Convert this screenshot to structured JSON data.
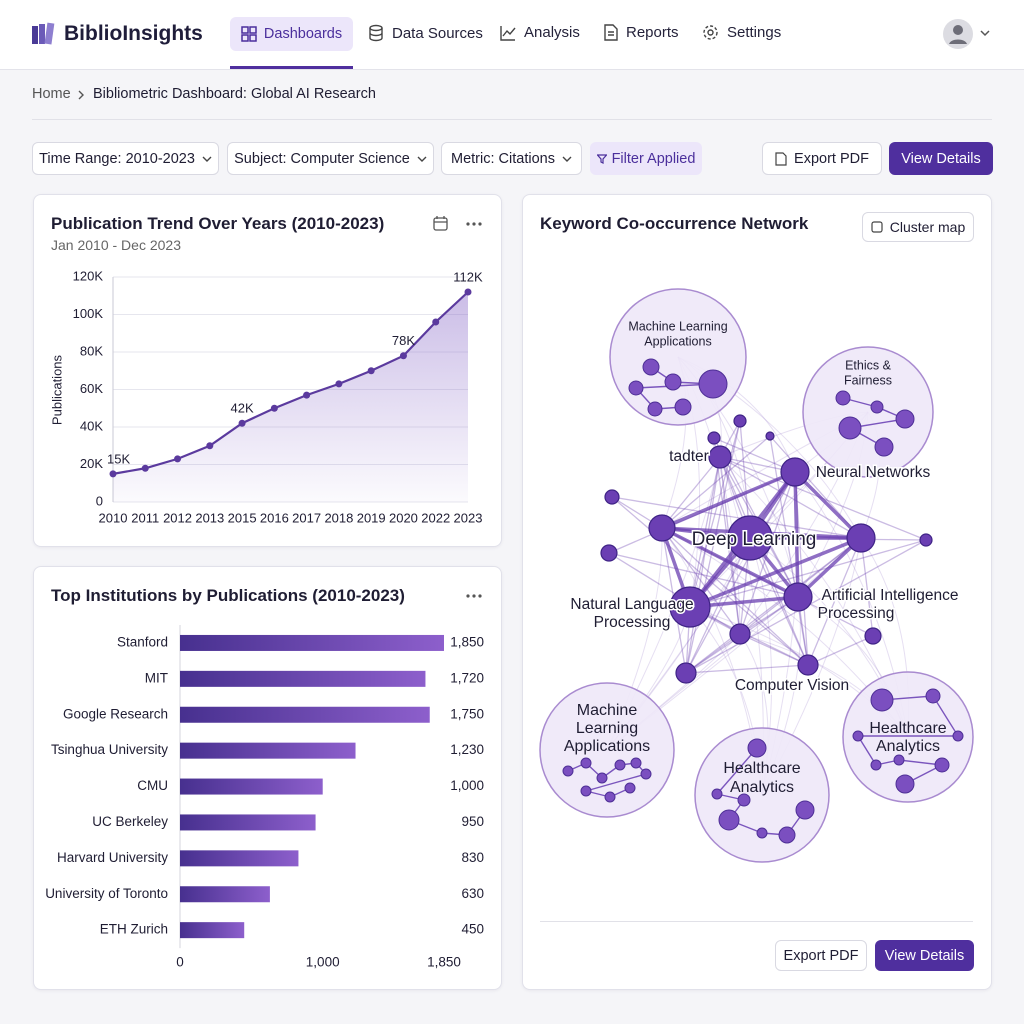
{
  "header": {
    "brand": "BiblioInsights",
    "nav": [
      "Dashboards",
      "Data Sources",
      "Analysis",
      "Reports",
      "Settings"
    ]
  },
  "breadcrumb": [
    "Home",
    "Bibliometric Dashboard: Global AI Research"
  ],
  "filters": [
    "Time Range: 2010-2023",
    "Subject: Computer Science",
    "Metric: Citations",
    "Filter Applied"
  ],
  "actions": [
    "Export PDF",
    "View Details"
  ],
  "chart_data": [
    {
      "type": "line",
      "title": "Publication Trend Over Years (2010-2023)",
      "subtitle": "Jan 2010 - Dec 2023",
      "y_label": "Publications",
      "categories": [
        "2010",
        "2011",
        "2012",
        "2013",
        "2015",
        "2016",
        "2017",
        "2018",
        "2019",
        "2020",
        "2022",
        "2023"
      ],
      "values": [
        15000,
        18000,
        23000,
        30000,
        42000,
        50000,
        57000,
        63000,
        70000,
        78000,
        96000,
        112000
      ],
      "value_labels": [
        "15K",
        null,
        null,
        null,
        "42K",
        null,
        null,
        null,
        null,
        "78K",
        null,
        "112K"
      ],
      "color": "#5b3a9e",
      "ylim": [
        0,
        120000
      ],
      "yticks": [
        0,
        {
          "value": 20000,
          "label": "20K"
        },
        {
          "value": 40000,
          "label": "40K"
        },
        {
          "value": 60000,
          "label": "60K"
        },
        {
          "value": 80000,
          "label": "80K"
        },
        {
          "value": 100000,
          "label": "100K"
        },
        {
          "value": 120000,
          "label": "120K"
        }
      ],
      "grid": true
    },
    {
      "type": "bar",
      "orientation": "horizontal",
      "title": "Top Institutions by Publications (2010-2023)",
      "categories": [
        "Stanford",
        "MIT",
        "Google Research",
        "Tsinghua University",
        "CMU",
        "UC Berkeley",
        "Harvard University",
        "University of Toronto",
        "ETH Zurich"
      ],
      "values": [
        1850,
        1720,
        1750,
        1230,
        1000,
        950,
        830,
        630,
        450
      ],
      "value_labels": [
        "1,850",
        "1,720",
        "1,750",
        "1,230",
        "1,000",
        "950",
        "830",
        "630",
        "450"
      ],
      "color": "#6a42b5",
      "xlim": [
        0,
        1850
      ],
      "xticks": [
        0,
        {
          "value": 1000,
          "label": "1,000"
        },
        {
          "value": 1850,
          "label": "1,850"
        }
      ]
    }
  ],
  "network": {
    "title": "Keyword Co-occurrence Network",
    "button": "Cluster map",
    "clusters": [
      {
        "label": [
          "Machine Learning",
          "Applications"
        ]
      },
      {
        "label": [
          "Ethics &",
          "Fairness"
        ]
      },
      {
        "label": [
          "Machine",
          "Learning",
          "Applications"
        ]
      },
      {
        "label": [
          "Healthcare",
          "Analytics"
        ]
      },
      {
        "label": [
          "Healthcare",
          "Analytics"
        ]
      }
    ],
    "labels": [
      [
        "tadter"
      ],
      [
        "Neural Networks"
      ],
      [
        "Deep Learning"
      ],
      [
        "Natural Language",
        "Processing"
      ],
      [
        "Artificial Intelligence",
        "Processing"
      ],
      [
        "Computer Vision"
      ]
    ],
    "actions": [
      "Export PDF",
      "View Details"
    ]
  }
}
